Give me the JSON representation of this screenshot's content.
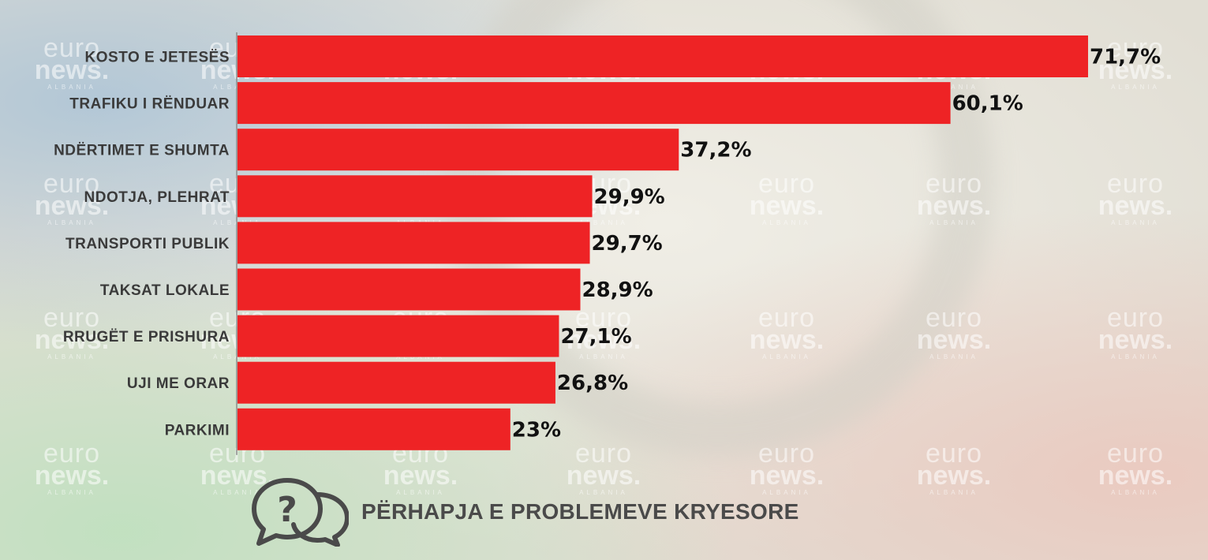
{
  "brand": {
    "watermark_line1": "euro",
    "watermark_line2": "news.",
    "watermark_line3": "ALBANIA"
  },
  "colors": {
    "bar": "#ee2325",
    "axis": "#8a8a8a"
  },
  "caption": {
    "icon": "speech-bubbles-question-icon",
    "text": "PËRHAPJA E PROBLEMEVE KRYESORE"
  },
  "chart_data": {
    "type": "bar",
    "orientation": "horizontal",
    "categories": [
      "KOSTO E JETESËS",
      "TRAFIKU I RËNDUAR",
      "NDËRTIMET E SHUMTA",
      "NDOTJA, PLEHRAT",
      "TRANSPORTI PUBLIK",
      "TAKSAT LOKALE",
      "RRUGËT E PRISHURA",
      "UJI ME ORAR",
      "PARKIMI"
    ],
    "values": [
      71.7,
      60.1,
      37.2,
      29.9,
      29.7,
      28.9,
      27.1,
      26.8,
      23
    ],
    "value_labels": [
      "71,7%",
      "60,1%",
      "37,2%",
      "29,9%",
      "29,7%",
      "28,9%",
      "27,1%",
      "26,8%",
      "23%"
    ],
    "title": "PËRHAPJA E PROBLEMEVE KRYESORE",
    "xlabel": "",
    "ylabel": "",
    "xlim": [
      0,
      71.7
    ],
    "grid": false,
    "legend": "none"
  }
}
